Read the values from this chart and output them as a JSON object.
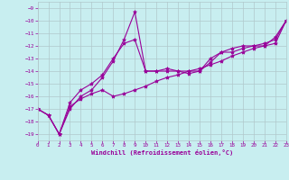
{
  "xlabel": "Windchill (Refroidissement éolien,°C)",
  "bg_color": "#c8eef0",
  "line_color": "#990099",
  "grid_color": "#b0c8cb",
  "xlim": [
    0,
    23
  ],
  "ylim": [
    -19.5,
    -8.5
  ],
  "xticks": [
    0,
    1,
    2,
    3,
    4,
    5,
    6,
    7,
    8,
    9,
    10,
    11,
    12,
    13,
    14,
    15,
    16,
    17,
    18,
    19,
    20,
    21,
    22,
    23
  ],
  "yticks": [
    -9,
    -10,
    -11,
    -12,
    -13,
    -14,
    -15,
    -16,
    -17,
    -18,
    -19
  ],
  "line1_x": [
    0,
    1,
    2,
    3,
    4,
    5,
    6,
    7,
    8,
    9,
    10,
    11,
    12,
    13,
    14,
    15,
    16,
    17,
    18,
    19,
    20,
    21,
    22,
    23
  ],
  "line1_y": [
    -17.0,
    -17.5,
    -19.0,
    -17.0,
    -16.0,
    -15.5,
    -14.5,
    -13.2,
    -11.5,
    -9.3,
    -14.0,
    -14.0,
    -14.0,
    -14.0,
    -14.2,
    -14.0,
    -13.3,
    -12.5,
    -12.2,
    -12.0,
    -12.0,
    -12.0,
    -11.3,
    -10.0
  ],
  "line2_x": [
    0,
    1,
    2,
    3,
    4,
    5,
    6,
    7,
    8,
    9,
    10,
    11,
    12,
    13,
    14,
    15,
    16,
    17,
    18,
    19,
    20,
    21,
    22,
    23
  ],
  "line2_y": [
    -17.0,
    -17.5,
    -19.0,
    -16.5,
    -15.5,
    -15.0,
    -14.3,
    -13.0,
    -11.8,
    -11.5,
    -14.0,
    -14.0,
    -13.8,
    -14.0,
    -14.0,
    -14.0,
    -13.0,
    -12.5,
    -12.5,
    -12.2,
    -12.0,
    -11.8,
    -11.5,
    -10.0
  ],
  "line3_x": [
    0,
    1,
    2,
    3,
    4,
    5,
    6,
    7,
    8,
    9,
    10,
    11,
    12,
    13,
    14,
    15,
    16,
    17,
    18,
    19,
    20,
    21,
    22,
    23
  ],
  "line3_y": [
    -17.0,
    -17.5,
    -19.0,
    -16.8,
    -16.2,
    -15.8,
    -15.5,
    -16.0,
    -15.8,
    -15.5,
    -15.2,
    -14.8,
    -14.5,
    -14.3,
    -14.0,
    -13.8,
    -13.5,
    -13.2,
    -12.8,
    -12.5,
    -12.2,
    -12.0,
    -11.8,
    -10.0
  ]
}
